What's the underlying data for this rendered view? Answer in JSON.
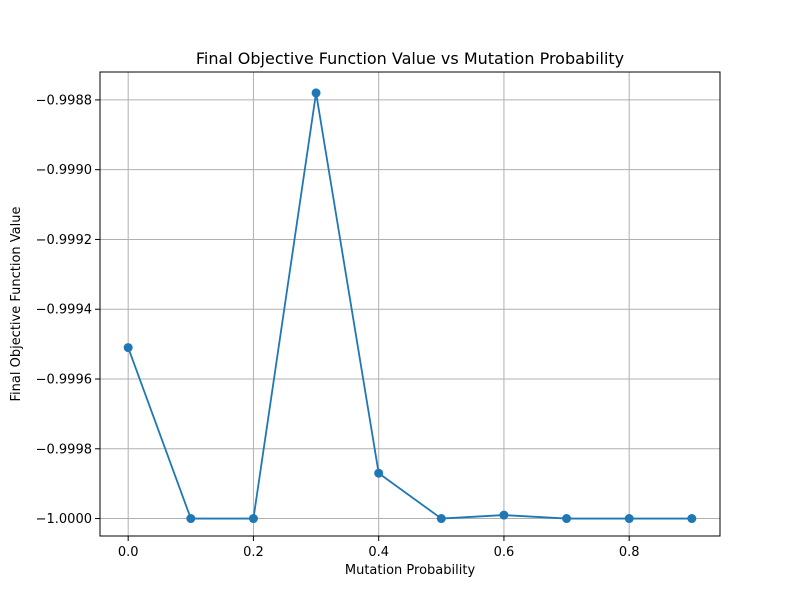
{
  "chart_data": {
    "type": "line",
    "title": "Final Objective Function Value vs Mutation Probability",
    "xlabel": "Mutation Probability",
    "ylabel": "Final Objective Function Value",
    "xlim": [
      -0.045,
      0.945
    ],
    "ylim": [
      -1.00005,
      -0.99872
    ],
    "xticks": [
      0.0,
      0.2,
      0.4,
      0.6,
      0.8
    ],
    "xtick_labels": [
      "0.0",
      "0.2",
      "0.4",
      "0.6",
      "0.8"
    ],
    "yticks": [
      -0.9988,
      -0.999,
      -0.9992,
      -0.9994,
      -0.9996,
      -0.9998,
      -1.0
    ],
    "ytick_labels": [
      "−0.9988",
      "−0.9990",
      "−0.9992",
      "−0.9994",
      "−0.9996",
      "−0.9998",
      "−1.0000"
    ],
    "grid": true,
    "color": "#1f77b4",
    "series": [
      {
        "x": [
          0.0,
          0.1,
          0.2,
          0.3,
          0.4,
          0.5,
          0.6,
          0.7,
          0.8,
          0.9
        ],
        "y": [
          -0.99951,
          -1.0,
          -1.0,
          -0.99878,
          -0.99987,
          -1.0,
          -0.99999,
          -1.0,
          -1.0,
          -1.0
        ]
      }
    ]
  }
}
